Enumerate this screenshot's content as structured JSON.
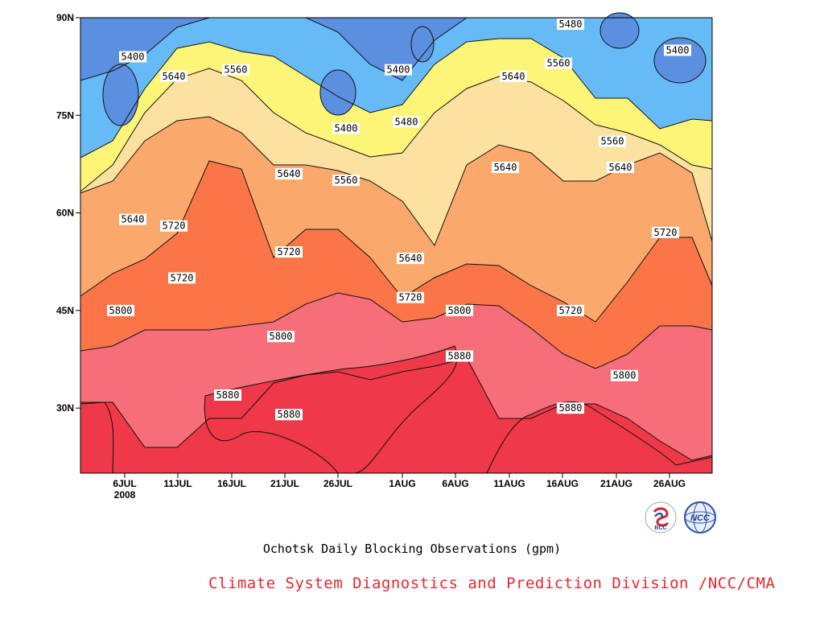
{
  "chart_data": {
    "type": "heatmap",
    "subtitle": "Ochotsk Daily Blocking Observations (gpm)",
    "credit": "Climate System Diagnostics and Prediction Division /NCC/CMA",
    "x_ticks": [
      "6JUL",
      "11JUL",
      "16JUL",
      "21JUL",
      "26JUL",
      "1AUG",
      "6AUG",
      "11AUG",
      "16AUG",
      "21AUG",
      "26AUG"
    ],
    "x_tick_year": "2008",
    "y_ticks": [
      "30N",
      "45N",
      "60N",
      "75N",
      "90N"
    ],
    "y_range_deg": [
      20,
      90
    ],
    "contour_interval": 80,
    "colors": {
      "lt5400": "#5b8fe0",
      "5400_5480": "#66bbf7",
      "5480_5560": "#fdf577",
      "5560_5640": "#fde1a0",
      "5640_5720": "#fba86c",
      "5720_5800": "#fb7548",
      "5800_5880": "#f56e79",
      "gt5880": "#ef3848"
    },
    "contour_labels": [
      {
        "text": "5400",
        "lon": "6JUL",
        "lat": 84
      },
      {
        "text": "5640",
        "lon": "11JUL",
        "lat": 81
      },
      {
        "text": "5560",
        "lon": "16JUL",
        "lat": 82
      },
      {
        "text": "5400",
        "lon": "26JUL",
        "lat": 73
      },
      {
        "text": "5400",
        "lon": "1AUG",
        "lat": 82
      },
      {
        "text": "5480",
        "lon": "1AUG",
        "lat": 74
      },
      {
        "text": "5480",
        "lon": "16AUG",
        "lat": 89
      },
      {
        "text": "5560",
        "lon": "16AUG",
        "lat": 83
      },
      {
        "text": "5640",
        "lon": "11AUG",
        "lat": 81
      },
      {
        "text": "5400",
        "lon": "26AUG",
        "lat": 85
      },
      {
        "text": "5560",
        "lon": "21AUG",
        "lat": 71
      },
      {
        "text": "5640",
        "lon": "21JUL",
        "lat": 66
      },
      {
        "text": "5560",
        "lon": "26JUL",
        "lat": 65
      },
      {
        "text": "5640",
        "lon": "11AUG",
        "lat": 67
      },
      {
        "text": "5640",
        "lon": "21AUG",
        "lat": 67
      },
      {
        "text": "5640",
        "lon": "6JUL",
        "lat": 59
      },
      {
        "text": "5720",
        "lon": "11JUL",
        "lat": 58
      },
      {
        "text": "5720",
        "lon": "21JUL",
        "lat": 54
      },
      {
        "text": "5640",
        "lon": "1AUG",
        "lat": 53
      },
      {
        "text": "5720",
        "lon": "26AUG",
        "lat": 57
      },
      {
        "text": "5720",
        "lon": "11JUL",
        "lat": 50
      },
      {
        "text": "5720",
        "lon": "1AUG",
        "lat": 47
      },
      {
        "text": "5800",
        "lon": "6JUL",
        "lat": 45
      },
      {
        "text": "5800",
        "lon": "6AUG",
        "lat": 45
      },
      {
        "text": "5720",
        "lon": "16AUG",
        "lat": 45
      },
      {
        "text": "5800",
        "lon": "21JUL",
        "lat": 41
      },
      {
        "text": "5880",
        "lon": "6AUG",
        "lat": 38
      },
      {
        "text": "5800",
        "lon": "21AUG",
        "lat": 35
      },
      {
        "text": "5880",
        "lon": "16JUL",
        "lat": 32
      },
      {
        "text": "5880",
        "lon": "21JUL",
        "lat": 29
      },
      {
        "text": "5880",
        "lon": "16AUG",
        "lat": 30
      }
    ]
  },
  "logos": {
    "left": {
      "label": "BCC",
      "icon": "bcc-logo"
    },
    "right": {
      "label": "NCC",
      "icon": "ncc-logo"
    }
  }
}
